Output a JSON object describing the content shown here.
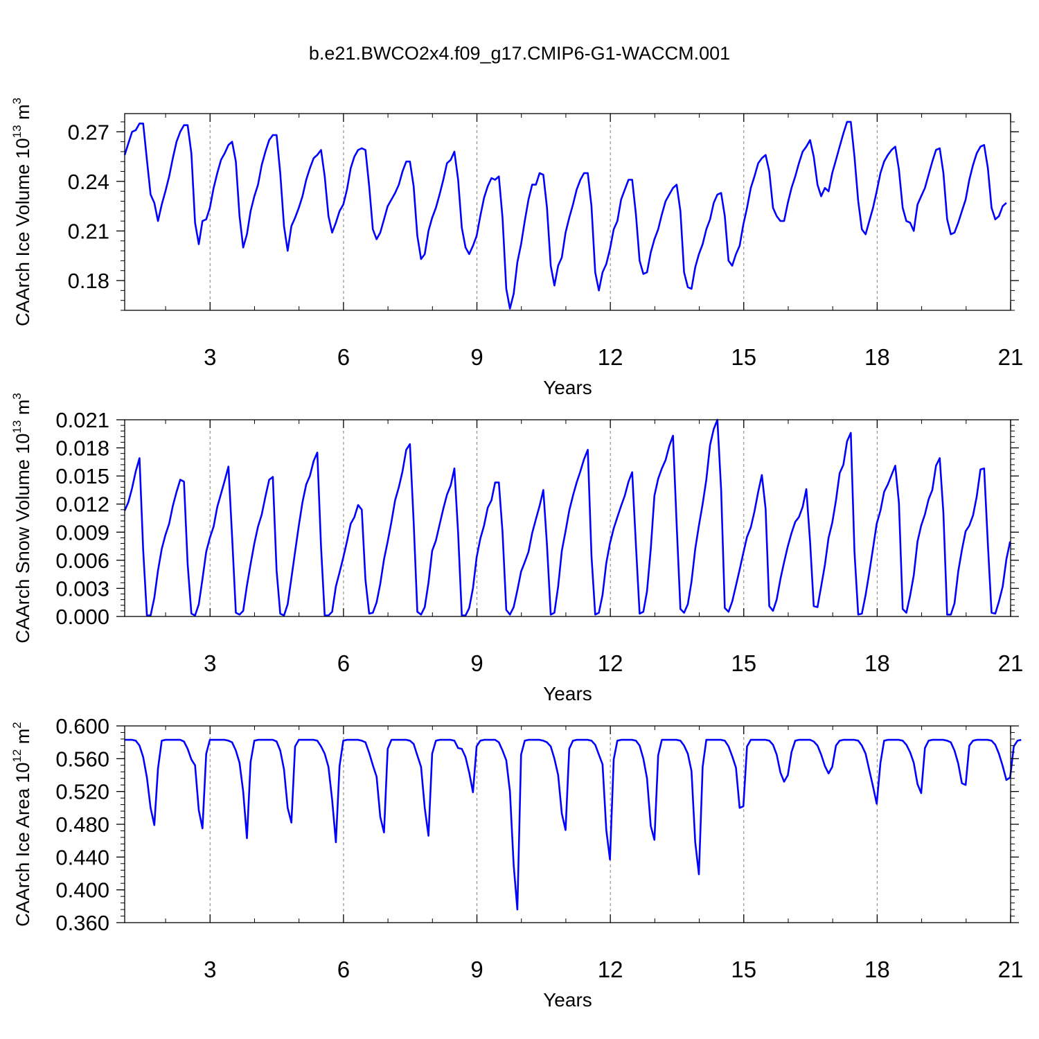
{
  "title": "b.e21.BWCO2x4.f09_g17.CMIP6-G1-WACCM.001",
  "colors": {
    "line": "#0000ff",
    "axis": "#000000",
    "grid": "#808080"
  },
  "chart_data": [
    {
      "type": "line",
      "ylabel_text": "CAArch Ice Volume 10",
      "ylabel_exp": "13",
      "ylabel_unit": "m",
      "ylabel_unit_exp": "3",
      "xlabel": "Years",
      "xlim": [
        1.08,
        21
      ],
      "ylim": [
        0.162,
        0.281
      ],
      "xticks": [
        3,
        6,
        9,
        12,
        15,
        18,
        21
      ],
      "xtick_labels": [
        "3",
        "6",
        "9",
        "12",
        "15",
        "18",
        "21"
      ],
      "yticks": [
        0.18,
        0.21,
        0.24,
        0.27
      ],
      "ytick_labels": [
        "0.18",
        "0.21",
        "0.24",
        "0.27"
      ],
      "grid": "dashed vertical at major x ticks",
      "series": [
        {
          "x_start": 1.08,
          "x_step": 0.0833,
          "values": [
            0.256,
            0.263,
            0.27,
            0.271,
            0.275,
            0.275,
            0.253,
            0.232,
            0.227,
            0.216,
            0.226,
            0.234,
            0.243,
            0.254,
            0.264,
            0.27,
            0.274,
            0.274,
            0.257,
            0.215,
            0.202,
            0.216,
            0.217,
            0.224,
            0.236,
            0.245,
            0.253,
            0.257,
            0.262,
            0.264,
            0.252,
            0.219,
            0.2,
            0.208,
            0.222,
            0.231,
            0.238,
            0.25,
            0.258,
            0.265,
            0.268,
            0.268,
            0.245,
            0.213,
            0.198,
            0.213,
            0.218,
            0.224,
            0.231,
            0.241,
            0.248,
            0.254,
            0.256,
            0.259,
            0.243,
            0.219,
            0.209,
            0.215,
            0.222,
            0.226,
            0.235,
            0.248,
            0.255,
            0.259,
            0.26,
            0.259,
            0.237,
            0.211,
            0.205,
            0.209,
            0.217,
            0.225,
            0.229,
            0.233,
            0.238,
            0.246,
            0.252,
            0.252,
            0.237,
            0.207,
            0.193,
            0.196,
            0.21,
            0.218,
            0.224,
            0.232,
            0.241,
            0.251,
            0.253,
            0.258,
            0.241,
            0.212,
            0.2,
            0.196,
            0.201,
            0.207,
            0.219,
            0.23,
            0.237,
            0.242,
            0.241,
            0.243,
            0.218,
            0.175,
            0.163,
            0.172,
            0.191,
            0.202,
            0.216,
            0.229,
            0.238,
            0.238,
            0.245,
            0.244,
            0.224,
            0.189,
            0.177,
            0.189,
            0.194,
            0.209,
            0.218,
            0.226,
            0.235,
            0.241,
            0.245,
            0.245,
            0.225,
            0.185,
            0.174,
            0.185,
            0.19,
            0.199,
            0.211,
            0.216,
            0.229,
            0.235,
            0.241,
            0.241,
            0.22,
            0.192,
            0.184,
            0.185,
            0.197,
            0.205,
            0.211,
            0.22,
            0.228,
            0.232,
            0.236,
            0.238,
            0.222,
            0.185,
            0.176,
            0.175,
            0.188,
            0.196,
            0.202,
            0.211,
            0.217,
            0.227,
            0.232,
            0.233,
            0.219,
            0.192,
            0.189,
            0.196,
            0.201,
            0.214,
            0.224,
            0.236,
            0.243,
            0.251,
            0.254,
            0.256,
            0.246,
            0.224,
            0.219,
            0.216,
            0.216,
            0.227,
            0.236,
            0.243,
            0.251,
            0.258,
            0.261,
            0.265,
            0.255,
            0.238,
            0.231,
            0.236,
            0.234,
            0.245,
            0.253,
            0.261,
            0.269,
            0.276,
            0.276,
            0.255,
            0.228,
            0.211,
            0.208,
            0.216,
            0.224,
            0.234,
            0.245,
            0.252,
            0.256,
            0.259,
            0.261,
            0.247,
            0.224,
            0.216,
            0.215,
            0.21,
            0.226,
            0.231,
            0.236,
            0.244,
            0.252,
            0.259,
            0.26,
            0.245,
            0.217,
            0.208,
            0.209,
            0.215,
            0.222,
            0.229,
            0.241,
            0.25,
            0.257,
            0.261,
            0.262,
            0.248,
            0.224,
            0.217,
            0.219,
            0.225,
            0.227
          ]
        }
      ]
    },
    {
      "type": "line",
      "ylabel_text": "CAArch Snow Volume 10",
      "ylabel_exp": "13",
      "ylabel_unit": "m",
      "ylabel_unit_exp": "3",
      "xlabel": "Years",
      "xlim": [
        1.08,
        21
      ],
      "ylim": [
        0,
        0.021
      ],
      "xticks": [
        3,
        6,
        9,
        12,
        15,
        18,
        21
      ],
      "xtick_labels": [
        "3",
        "6",
        "9",
        "12",
        "15",
        "18",
        "21"
      ],
      "yticks": [
        0.0,
        0.003,
        0.006,
        0.009,
        0.012,
        0.015,
        0.018,
        0.021
      ],
      "ytick_labels": [
        "0.000",
        "0.003",
        "0.006",
        "0.009",
        "0.012",
        "0.015",
        "0.018",
        "0.021"
      ],
      "grid": "dashed vertical at major x ticks",
      "series": [
        {
          "x_start": 1.08,
          "x_step": 0.0833,
          "values": [
            0.0113,
            0.0122,
            0.0137,
            0.0155,
            0.0169,
            0.0071,
            0.0001,
            0.0001,
            0.002,
            0.0049,
            0.0072,
            0.0087,
            0.0099,
            0.0118,
            0.0133,
            0.0146,
            0.0144,
            0.0056,
            0.0003,
            0.0001,
            0.0013,
            0.004,
            0.0069,
            0.0084,
            0.0096,
            0.0117,
            0.0131,
            0.0145,
            0.016,
            0.0085,
            0.0004,
            0.0002,
            0.0006,
            0.0033,
            0.0056,
            0.0078,
            0.0096,
            0.0109,
            0.0128,
            0.0146,
            0.0149,
            0.0049,
            0.0003,
            0.0001,
            0.0013,
            0.0041,
            0.0069,
            0.0097,
            0.0122,
            0.0141,
            0.015,
            0.0166,
            0.0175,
            0.0074,
            0.0001,
            0.0001,
            0.0005,
            0.0032,
            0.0047,
            0.0063,
            0.008,
            0.0099,
            0.0106,
            0.0119,
            0.0114,
            0.0039,
            0.0003,
            0.0004,
            0.0015,
            0.0035,
            0.0061,
            0.008,
            0.0101,
            0.0124,
            0.0138,
            0.0155,
            0.0178,
            0.0184,
            0.0101,
            0.0005,
            0.0002,
            0.001,
            0.0036,
            0.007,
            0.0081,
            0.0098,
            0.0115,
            0.013,
            0.014,
            0.0158,
            0.0089,
            0.0001,
            0.0001,
            0.0009,
            0.003,
            0.0063,
            0.0083,
            0.0097,
            0.0116,
            0.0124,
            0.0143,
            0.0143,
            0.009,
            0.0007,
            0.0002,
            0.001,
            0.0028,
            0.0048,
            0.0058,
            0.0069,
            0.0089,
            0.0104,
            0.0118,
            0.0135,
            0.0076,
            0.0002,
            0.0004,
            0.0032,
            0.007,
            0.0091,
            0.0113,
            0.0129,
            0.0143,
            0.0155,
            0.0168,
            0.0178,
            0.0065,
            0.0002,
            0.0004,
            0.0023,
            0.0057,
            0.0078,
            0.0094,
            0.0106,
            0.0118,
            0.0129,
            0.0144,
            0.0154,
            0.0076,
            0.0003,
            0.0005,
            0.0027,
            0.0072,
            0.0129,
            0.0147,
            0.0158,
            0.0167,
            0.0182,
            0.0193,
            0.0098,
            0.0008,
            0.0004,
            0.0013,
            0.0037,
            0.0072,
            0.0097,
            0.012,
            0.0146,
            0.0183,
            0.02,
            0.021,
            0.0135,
            0.0009,
            0.0005,
            0.0016,
            0.0033,
            0.005,
            0.0068,
            0.0085,
            0.0095,
            0.0112,
            0.0133,
            0.0151,
            0.0115,
            0.0011,
            0.0006,
            0.0018,
            0.004,
            0.0058,
            0.0075,
            0.0089,
            0.0101,
            0.0106,
            0.0117,
            0.0136,
            0.008,
            0.0011,
            0.001,
            0.0032,
            0.0055,
            0.0084,
            0.01,
            0.0124,
            0.0153,
            0.0162,
            0.0187,
            0.0196,
            0.0069,
            0.0002,
            0.0003,
            0.0023,
            0.0047,
            0.0073,
            0.0099,
            0.0113,
            0.0133,
            0.0141,
            0.0151,
            0.0161,
            0.0121,
            0.0008,
            0.0004,
            0.0022,
            0.0044,
            0.008,
            0.0097,
            0.0109,
            0.0125,
            0.0135,
            0.0161,
            0.0169,
            0.011,
            0.0002,
            0.0002,
            0.0014,
            0.0048,
            0.0071,
            0.0091,
            0.0097,
            0.0108,
            0.0128,
            0.0157,
            0.0158,
            0.0077,
            0.0004,
            0.0003,
            0.0016,
            0.0032,
            0.0061,
            0.008
          ]
        }
      ]
    },
    {
      "type": "line",
      "ylabel_text": "CAArch Ice Area 10",
      "ylabel_exp": "12",
      "ylabel_unit": "m",
      "ylabel_unit_exp": "2",
      "xlabel": "Years",
      "xlim": [
        1.08,
        21
      ],
      "ylim": [
        0.36,
        0.6
      ],
      "xticks": [
        3,
        6,
        9,
        12,
        15,
        18,
        21
      ],
      "xtick_labels": [
        "3",
        "6",
        "9",
        "12",
        "15",
        "18",
        "21"
      ],
      "yticks": [
        0.36,
        0.4,
        0.44,
        0.48,
        0.52,
        0.56,
        0.6
      ],
      "ytick_labels": [
        "0.360",
        "0.400",
        "0.440",
        "0.480",
        "0.520",
        "0.560",
        "0.600"
      ],
      "grid": "dashed vertical at major x ticks",
      "series": [
        {
          "x_start": 1.08,
          "x_step": 0.0833,
          "values": [
            0.583,
            0.583,
            0.583,
            0.582,
            0.576,
            0.562,
            0.537,
            0.5,
            0.479,
            0.548,
            0.582,
            0.583,
            0.583,
            0.583,
            0.583,
            0.583,
            0.581,
            0.572,
            0.559,
            0.552,
            0.497,
            0.475,
            0.566,
            0.583,
            0.583,
            0.583,
            0.583,
            0.583,
            0.582,
            0.58,
            0.57,
            0.555,
            0.52,
            0.463,
            0.556,
            0.582,
            0.583,
            0.583,
            0.583,
            0.583,
            0.583,
            0.581,
            0.57,
            0.547,
            0.5,
            0.482,
            0.575,
            0.583,
            0.583,
            0.583,
            0.583,
            0.583,
            0.582,
            0.575,
            0.566,
            0.55,
            0.51,
            0.458,
            0.551,
            0.582,
            0.583,
            0.583,
            0.583,
            0.583,
            0.582,
            0.58,
            0.567,
            0.552,
            0.538,
            0.489,
            0.47,
            0.572,
            0.583,
            0.583,
            0.583,
            0.583,
            0.583,
            0.582,
            0.578,
            0.564,
            0.55,
            0.5,
            0.466,
            0.566,
            0.582,
            0.583,
            0.583,
            0.583,
            0.583,
            0.582,
            0.573,
            0.572,
            0.562,
            0.543,
            0.519,
            0.575,
            0.582,
            0.583,
            0.583,
            0.583,
            0.583,
            0.58,
            0.57,
            0.558,
            0.52,
            0.43,
            0.376,
            0.565,
            0.582,
            0.583,
            0.583,
            0.583,
            0.583,
            0.582,
            0.58,
            0.575,
            0.56,
            0.54,
            0.493,
            0.473,
            0.572,
            0.582,
            0.583,
            0.583,
            0.583,
            0.583,
            0.582,
            0.577,
            0.565,
            0.553,
            0.473,
            0.437,
            0.559,
            0.582,
            0.583,
            0.583,
            0.583,
            0.583,
            0.582,
            0.576,
            0.56,
            0.536,
            0.478,
            0.461,
            0.564,
            0.583,
            0.583,
            0.583,
            0.583,
            0.583,
            0.582,
            0.576,
            0.566,
            0.545,
            0.458,
            0.419,
            0.55,
            0.583,
            0.583,
            0.583,
            0.583,
            0.583,
            0.582,
            0.575,
            0.563,
            0.549,
            0.5,
            0.502,
            0.575,
            0.583,
            0.583,
            0.583,
            0.583,
            0.583,
            0.582,
            0.577,
            0.565,
            0.543,
            0.532,
            0.54,
            0.568,
            0.582,
            0.583,
            0.583,
            0.583,
            0.583,
            0.581,
            0.576,
            0.565,
            0.551,
            0.542,
            0.55,
            0.576,
            0.582,
            0.583,
            0.583,
            0.583,
            0.583,
            0.582,
            0.576,
            0.566,
            0.546,
            0.526,
            0.505,
            0.555,
            0.582,
            0.583,
            0.583,
            0.583,
            0.583,
            0.582,
            0.577,
            0.568,
            0.555,
            0.529,
            0.518,
            0.573,
            0.582,
            0.583,
            0.583,
            0.583,
            0.583,
            0.582,
            0.58,
            0.57,
            0.554,
            0.53,
            0.528,
            0.576,
            0.582,
            0.583,
            0.583,
            0.583,
            0.583,
            0.582,
            0.577,
            0.566,
            0.551,
            0.534,
            0.537,
            0.575,
            0.582,
            0.583
          ]
        }
      ]
    }
  ]
}
